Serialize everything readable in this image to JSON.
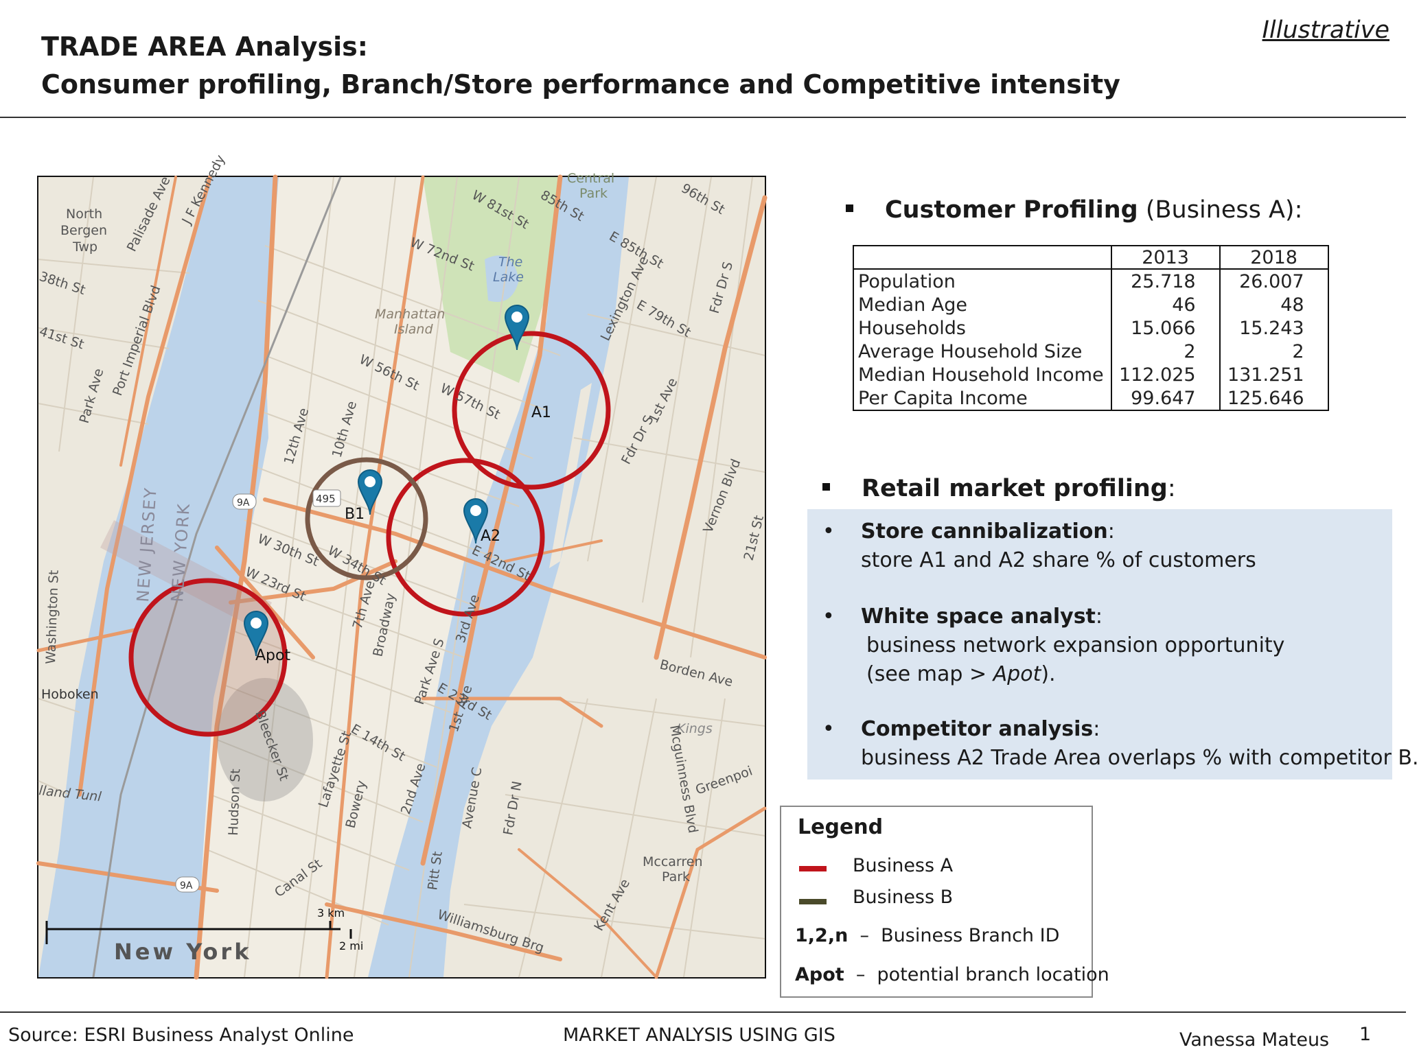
{
  "header": {
    "title_line1": "TRADE AREA Analysis:",
    "title_line2": "Consumer profiling, Branch/Store performance and Competitive intensity",
    "tag": "Illustrative"
  },
  "customer_profiling": {
    "heading_bold": "Customer Profiling",
    "heading_rest": " (Business A):",
    "columns": [
      "2013",
      "2018"
    ],
    "rows": [
      {
        "label": "Population",
        "v2013": "25.718",
        "v2018": "26.007"
      },
      {
        "label": "Median Age",
        "v2013": "46",
        "v2018": "48"
      },
      {
        "label": "Households",
        "v2013": "15.066",
        "v2018": "15.243"
      },
      {
        "label": "Average Household Size",
        "v2013": "2",
        "v2018": "2"
      },
      {
        "label": "Median Household Income",
        "v2013": "112.025",
        "v2018": "131.251"
      },
      {
        "label": "Per Capita Income",
        "v2013": "99.647",
        "v2018": "125.646"
      }
    ]
  },
  "retail_profiling": {
    "heading_bold": "Retail market profiling",
    "heading_rest": ":",
    "items": [
      {
        "head": "Store cannibalization",
        "colon": ":",
        "line1": "store A1 and A2 share % of customers"
      },
      {
        "head": "White space analyst",
        "colon": ":",
        "line1": "business network expansion opportunity",
        "line2_pre": "(see map > ",
        "line2_em": "Apot",
        "line2_post": ")."
      },
      {
        "head": "Competitor analysis",
        "colon": ":",
        "line1": "business A2 Trade Area overlaps % with competitor B."
      }
    ]
  },
  "legend": {
    "title": "Legend",
    "business_a": "Business A",
    "business_b": "Business B",
    "id_key": "1,2,n",
    "id_sep": "–",
    "id_text": "Business Branch ID",
    "apot_key": "Apot",
    "apot_sep": "–",
    "apot_text": "potential branch location",
    "color_a": "#c0141b",
    "color_b": "#4a4a2a"
  },
  "map": {
    "labels": {
      "north_bergen": [
        "North",
        "Bergen",
        "Twp"
      ],
      "central_park": [
        "Central",
        "Park"
      ],
      "the_lake": [
        "The",
        "Lake"
      ],
      "manhattan_island": [
        "Manhattan",
        "Island"
      ],
      "hoboken": "Hoboken",
      "new_jersey": "NEW JERSEY",
      "new_york_state": "NEW YORK",
      "new_york_city": "New York",
      "kings": "Kings",
      "greenpoint": "Greenpoi",
      "mccarren_park": [
        "Mccarren",
        "Park"
      ],
      "holland_tunl": "lland Tunl",
      "williamsburg_brg": "Williamsburg Brg",
      "borden_ave": "Borden Ave",
      "fdr_dr_s": "Fdr Dr S",
      "fdr_dr_n": "Fdr Dr N",
      "w_72nd": "W 72nd St",
      "w_56th": "W 56th St",
      "w_57th": "W 57th St",
      "w_30th": "W 30th St",
      "w_34th": "W 34th St",
      "w_23rd": "W 23rd St",
      "e_42nd": "E 42nd St",
      "e_23rd": "E 23rd St",
      "e_14th": "E 14th St",
      "broadway": "Broadway",
      "park_ave_s": "Park Ave S",
      "10th_ave": "10th Ave",
      "12th_ave": "12th Ave",
      "7th_ave": "7th Ave",
      "3rd_ave": "3rd Ave",
      "1st_ave": "1st Ave",
      "2nd_ave": "2nd Ave",
      "lexington": "Lexington Ave",
      "washington_st": "Washington St",
      "hudson_st": "Hudson St",
      "bleecker": "Bleecker St",
      "bowery": "Bowery",
      "lafayette": "Lafayette St",
      "canal_st": "Canal St",
      "pitt_st": "Pitt St",
      "avenue_c": "Avenue C",
      "kent_ave": "Kent Ave",
      "mcguinness": "Mcguinness Blvd",
      "vernon_blvd": "Vernon Blvd",
      "21st_st": "21st St",
      "w_81st": "W 81st St",
      "85th": "85th St",
      "e_85th": "E 85th St",
      "e_79th": "E 79th St",
      "96th": "96th St",
      "port_imperial": "Port Imperial Blvd",
      "palisade": "Palisade Ave",
      "jfk": "J F Kennedy",
      "park_ave_nj": "Park Ave",
      "38th": "38th St",
      "41st": "41st St",
      "shield_9a": "9A",
      "shield_495": "495",
      "shield_9a_b": "9A"
    },
    "markers": [
      {
        "id": "A1",
        "business": "A"
      },
      {
        "id": "A2",
        "business": "A"
      },
      {
        "id": "B1",
        "business": "B"
      },
      {
        "id": "Apot",
        "business": "potential"
      }
    ],
    "scale": {
      "km": "3 km",
      "mi": "2 mi"
    }
  },
  "footer": {
    "source": "Source: ESRI Business Analyst Online",
    "center": "MARKET ANALYSIS USING GIS",
    "author": "Vanessa Mateus",
    "page": "1"
  }
}
